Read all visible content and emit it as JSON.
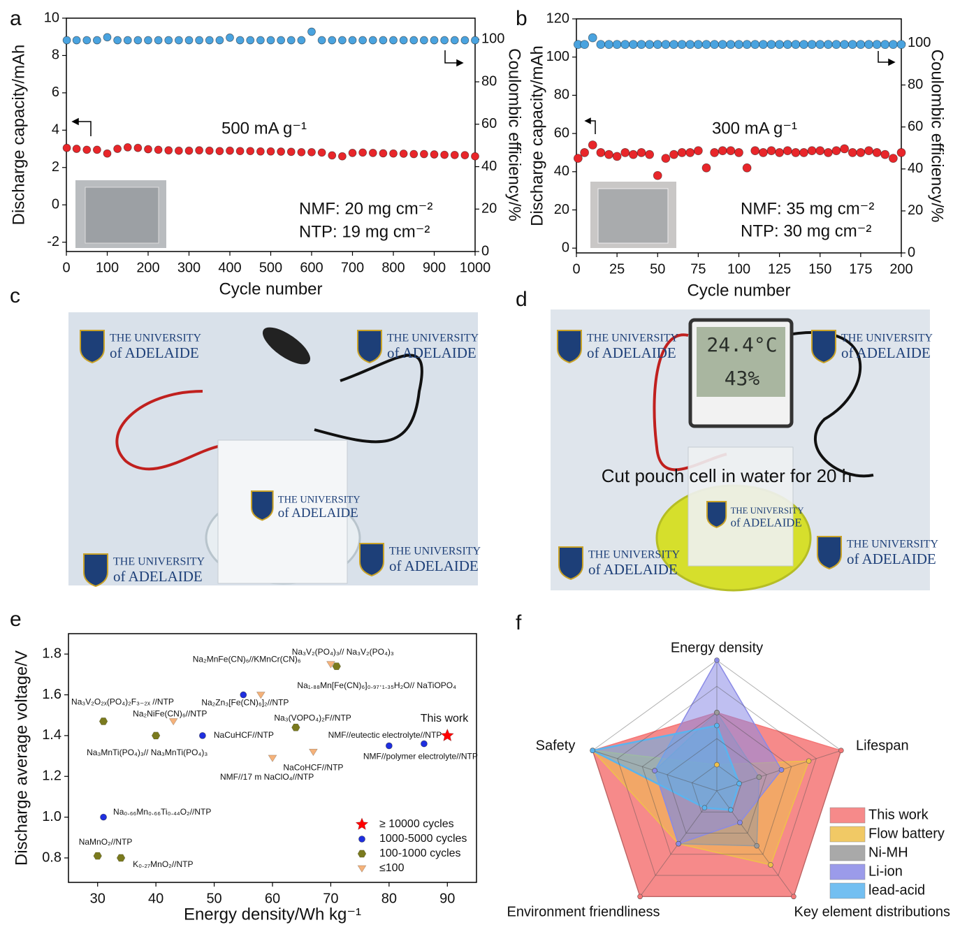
{
  "chart_data": [
    {
      "panel": "a",
      "type": "scatter",
      "xlabel": "Cycle number",
      "ylabel": "Discharge capacity/mAh",
      "y2label": "Coulombic efficiency/%",
      "xlim": [
        0,
        1000
      ],
      "ylim": [
        -2.5,
        10
      ],
      "y2lim": [
        0,
        110
      ],
      "xticks": [
        0,
        100,
        200,
        300,
        400,
        500,
        600,
        700,
        800,
        900,
        1000
      ],
      "yticks": [
        -2,
        0,
        2,
        4,
        6,
        8,
        10
      ],
      "y2ticks": [
        0,
        20,
        40,
        60,
        80,
        100
      ],
      "annotations": [
        "500 mA g⁻¹",
        "NMF: 20 mg cm⁻²",
        "NTP: 19 mg cm⁻²"
      ],
      "x": [
        1,
        25,
        50,
        75,
        100,
        125,
        150,
        175,
        200,
        225,
        250,
        275,
        300,
        325,
        350,
        375,
        400,
        425,
        450,
        475,
        500,
        525,
        550,
        575,
        600,
        625,
        650,
        675,
        700,
        725,
        750,
        775,
        800,
        825,
        850,
        875,
        900,
        925,
        950,
        975,
        1000
      ],
      "series": [
        {
          "color": "#e8262a",
          "marker": "circle",
          "values": [
            3.05,
            3.0,
            2.95,
            2.95,
            2.75,
            3.0,
            3.08,
            3.05,
            2.98,
            2.95,
            2.92,
            2.9,
            2.9,
            2.92,
            2.9,
            2.88,
            2.9,
            2.88,
            2.88,
            2.86,
            2.86,
            2.85,
            2.84,
            2.82,
            2.82,
            2.8,
            2.65,
            2.6,
            2.78,
            2.8,
            2.78,
            2.76,
            2.75,
            2.74,
            2.72,
            2.72,
            2.7,
            2.68,
            2.67,
            2.66,
            2.6
          ]
        },
        {
          "color": "#4aa3df",
          "marker": "circle",
          "axis": "y2",
          "values": [
            99.6,
            99.6,
            99.6,
            99.6,
            101,
            99.6,
            99.6,
            99.6,
            99.6,
            99.6,
            99.6,
            99.6,
            99.6,
            99.6,
            99.6,
            99.6,
            100.8,
            99.6,
            99.6,
            99.6,
            99.6,
            99.6,
            99.6,
            99.6,
            103.6,
            99.6,
            99.6,
            99.6,
            99.6,
            99.6,
            99.6,
            99.6,
            99.6,
            99.6,
            99.6,
            99.6,
            99.6,
            99.6,
            99.6,
            99.6,
            99.6
          ]
        }
      ]
    },
    {
      "panel": "b",
      "type": "scatter",
      "xlabel": "Cycle number",
      "ylabel": "Discharge capacity/mAh",
      "y2label": "Coulombic efficiency/%",
      "xlim": [
        0,
        200
      ],
      "ylim": [
        -2.5,
        120
      ],
      "y2lim": [
        0,
        111.5
      ],
      "xticks": [
        0,
        25,
        50,
        75,
        100,
        125,
        150,
        175,
        200
      ],
      "yticks": [
        0,
        20,
        40,
        60,
        80,
        100,
        120
      ],
      "y2ticks": [
        0,
        20,
        40,
        60,
        80,
        100
      ],
      "annotations": [
        "300 mA g⁻¹",
        "NMF: 35 mg cm⁻²",
        "NTP: 30 mg cm⁻²"
      ],
      "x": [
        1,
        5,
        10,
        15,
        20,
        25,
        30,
        35,
        40,
        45,
        50,
        55,
        60,
        65,
        70,
        75,
        80,
        85,
        90,
        95,
        100,
        105,
        110,
        115,
        120,
        125,
        130,
        135,
        140,
        145,
        150,
        155,
        160,
        165,
        170,
        175,
        180,
        185,
        190,
        195,
        200
      ],
      "series": [
        {
          "color": "#e8262a",
          "marker": "circle",
          "values": [
            47,
            50,
            54,
            50,
            49,
            48,
            50,
            49,
            50,
            49,
            38,
            47,
            49,
            50,
            50,
            51,
            42,
            50,
            51,
            51,
            50,
            42,
            51,
            50,
            51,
            50,
            51,
            50,
            50,
            51,
            51,
            50,
            51,
            52,
            50,
            50,
            51,
            50,
            49,
            47,
            50
          ]
        },
        {
          "color": "#4aa3df",
          "marker": "circle",
          "axis": "y2",
          "values": [
            99.3,
            99.3,
            102.5,
            99.3,
            99.3,
            99.3,
            99.3,
            99.3,
            99.3,
            99.3,
            99.3,
            99.3,
            99.3,
            99.3,
            99.3,
            99.3,
            99.3,
            99.3,
            99.3,
            99.3,
            99.3,
            99.3,
            99.3,
            99.3,
            99.3,
            99.3,
            99.3,
            99.3,
            99.3,
            99.3,
            99.3,
            99.3,
            99.3,
            99.3,
            99.3,
            99.3,
            99.3,
            99.3,
            99.3,
            99.3,
            99.3
          ]
        }
      ]
    },
    {
      "panel": "e",
      "type": "scatter",
      "xlabel": "Energy density/Wh kg⁻¹",
      "ylabel": "Discharge average voltage/V",
      "xlim": [
        25,
        95
      ],
      "ylim": [
        0.68,
        1.9
      ],
      "xticks": [
        30,
        40,
        50,
        60,
        70,
        80,
        90
      ],
      "yticks": [
        0.8,
        {
          "value": 1,
          "label": "1.0"
        },
        1.2,
        1.4,
        1.6,
        1.8
      ],
      "annotations": [
        "This work"
      ],
      "legend": true,
      "series": [
        {
          "name": "≥ 10000 cycles",
          "color": "#ff0000",
          "marker": "star",
          "x": [
            90
          ],
          "values": [
            1.4
          ],
          "labels": [
            "NMF//eutectic electrolyte//NTP"
          ]
        },
        {
          "name": "1000-5000 cycles",
          "color": "#1f2fe0",
          "marker": "circle",
          "x": [
            55,
            48,
            80,
            86,
            31
          ],
          "values": [
            1.6,
            1.4,
            1.35,
            1.36,
            1.0
          ],
          "labels": [
            "Na₂MnFe(CN)₆//KMnCr(CN)₆",
            "NaCuHCF//NTP",
            null,
            "NMF//polymer electrolyte//NTP",
            "Na₀.₆₆Mn₀.₆₆Ti₀.₄₄O₂//NTP"
          ]
        },
        {
          "name": "100-1000 cycles",
          "color": "#7a7a1e",
          "marker": "hexagon",
          "x": [
            71,
            31,
            40,
            64,
            30,
            34
          ],
          "values": [
            1.74,
            1.47,
            1.4,
            1.44,
            0.81,
            0.8
          ],
          "labels": [
            "Na₃V₂(PO₄)₃// Na₃V₂(PO₄)₃",
            "Na₃V₂O₂ₓ(PO₄)₂F₃₋₂ₓ //NTP",
            "Na₃MnTi(PO₄)₃// Na₃MnTi(PO₄)₃",
            "Na₃(VOPO₄)₂F//NTP",
            "NaMnO₂//NTP",
            "K₀.₂₇MnO₂//NTP"
          ]
        },
        {
          "name": "≤100",
          "color": "#f5b27a",
          "marker": "triangle-down",
          "x": [
            70,
            58,
            43,
            60,
            67
          ],
          "values": [
            1.75,
            1.6,
            1.47,
            1.29,
            1.32
          ],
          "labels": [
            "Na₁.₈₈Mn[Fe(CN)₆]₀.₉₇·₁.₃₅H₂O// NaTiOPO₄",
            "Na₂Zn₃[Fe(CN)₆]₂//NTP",
            "Na₂NiFe(CN)₆//NTP",
            "NMF//17 m NaClO₄//NTP",
            "NaCoHCF//NTP"
          ]
        }
      ]
    },
    {
      "panel": "f",
      "type": "radar",
      "categories": [
        "Energy density",
        "Lifespan",
        "Key element distributions",
        "Environment friendliness",
        "Safety"
      ],
      "rlim": [
        0,
        5
      ],
      "rticks": [
        1,
        2,
        3,
        4,
        5
      ],
      "series": [
        {
          "name": "This work",
          "color": "#f47676",
          "values": [
            3,
            5,
            5,
            5,
            5
          ]
        },
        {
          "name": "Flow battery",
          "color": "#efc04a",
          "values": [
            1,
            3.7,
            3.5,
            2.5,
            5
          ]
        },
        {
          "name": "Ni-MH",
          "color": "#9a9a9a",
          "values": [
            3,
            1.7,
            2.6,
            2.5,
            2.5
          ]
        },
        {
          "name": "Li-ion",
          "color": "#8a8ae6",
          "values": [
            5,
            2.6,
            1.5,
            2.5,
            2.5
          ]
        },
        {
          "name": "lead-acid",
          "color": "#5ab4ef",
          "values": [
            2.5,
            0.9,
            0.9,
            0.8,
            5
          ]
        }
      ]
    }
  ],
  "photos": [
    {
      "panel": "c",
      "logo": [
        "THE UNIVERSITY",
        "of ADELAIDE"
      ]
    },
    {
      "panel": "d",
      "logo": [
        "THE UNIVERSITY",
        "of ADELAIDE"
      ],
      "caption": "Cut pouch cell in water for 20 h",
      "display": [
        "24.4°C",
        "43%"
      ]
    }
  ]
}
